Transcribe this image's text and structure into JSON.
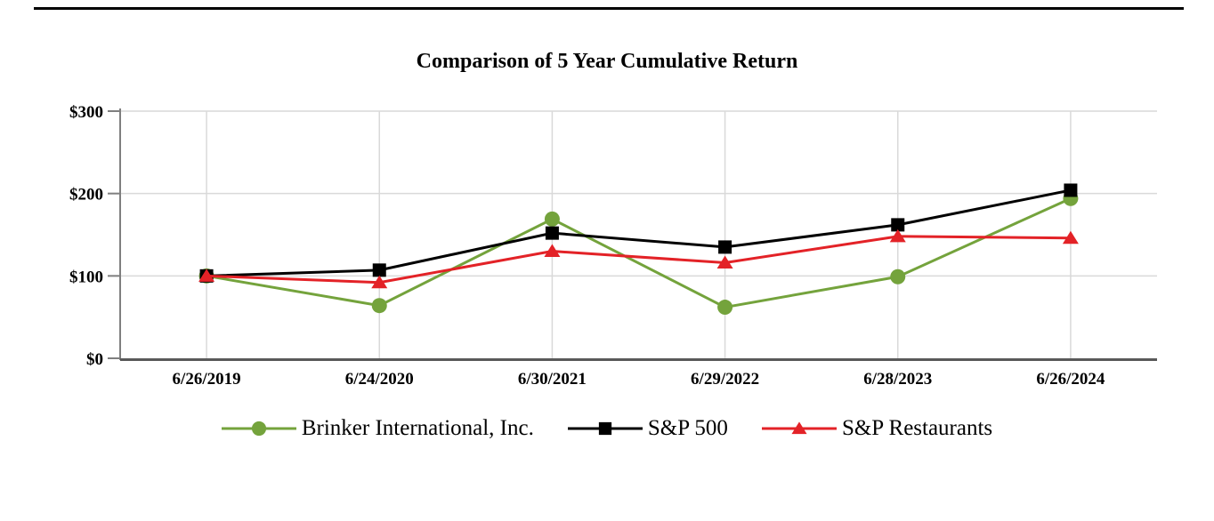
{
  "decorations": {
    "top_rule_color": "#000000"
  },
  "chart_data": {
    "type": "line",
    "title": "Comparison of 5 Year Cumulative Return",
    "categories": [
      "6/26/2019",
      "6/24/2020",
      "6/30/2021",
      "6/29/2022",
      "6/28/2023",
      "6/26/2024"
    ],
    "series": [
      {
        "name": "Brinker International, Inc.",
        "marker": "circle",
        "color": "#74A33C",
        "values": [
          100,
          64,
          169,
          62,
          99,
          194
        ]
      },
      {
        "name": "S&P 500",
        "marker": "square",
        "color": "#000000",
        "values": [
          100,
          107,
          152,
          135,
          162,
          204
        ]
      },
      {
        "name": "S&P Restaurants",
        "marker": "triangle",
        "color": "#E32227",
        "values": [
          100,
          92,
          130,
          116,
          148,
          146
        ]
      }
    ],
    "xlabel": "",
    "ylabel": "",
    "ylim": [
      0,
      300
    ],
    "ytick_values": [
      0,
      100,
      200,
      300
    ],
    "ytick_labels": [
      "$0",
      "$100",
      "$200",
      "$300"
    ],
    "grid": true,
    "legend_position": "bottom",
    "axis_colors": {
      "y_axis": "#7F7F7F",
      "x_axis": "#595959",
      "gridline": "#D9D9D9"
    }
  }
}
